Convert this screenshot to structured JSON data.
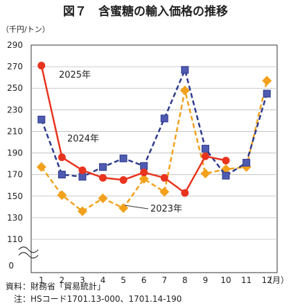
{
  "chart_data": {
    "type": "line",
    "title": "図７　含蜜糖の輸入価格の推移",
    "unit_label": "（千円/トン）",
    "xlabel": "（月）",
    "categories": [
      "1",
      "2",
      "3",
      "4",
      "5",
      "6",
      "7",
      "8",
      "9",
      "10",
      "11",
      "12"
    ],
    "ylim": [
      110,
      290
    ],
    "yticks": [
      "290",
      "270",
      "250",
      "230",
      "210",
      "190",
      "170",
      "150",
      "130",
      "110"
    ],
    "zero_label": "0",
    "grid": "horizontal",
    "series": [
      {
        "name": "2025年",
        "color": "#e8331e",
        "marker": "circle",
        "dash": false,
        "values": [
          271,
          186,
          174,
          167,
          165,
          172,
          167,
          153,
          187,
          183,
          null,
          null
        ]
      },
      {
        "name": "2024年",
        "color": "#2d3a8c",
        "marker": "square",
        "dash": true,
        "values": [
          221,
          170,
          168,
          177,
          185,
          178,
          222,
          267,
          194,
          169,
          181,
          245
        ]
      },
      {
        "name": "2023年",
        "color": "#f2a11c",
        "marker": "diamond",
        "dash": true,
        "values": [
          177,
          151,
          136,
          148,
          139,
          166,
          154,
          248,
          171,
          175,
          177,
          257
        ]
      }
    ]
  },
  "footer": {
    "source": "資料：財務省「貿易統計」",
    "note": "　注：HSコード1701.13-000、1701.14-190"
  }
}
